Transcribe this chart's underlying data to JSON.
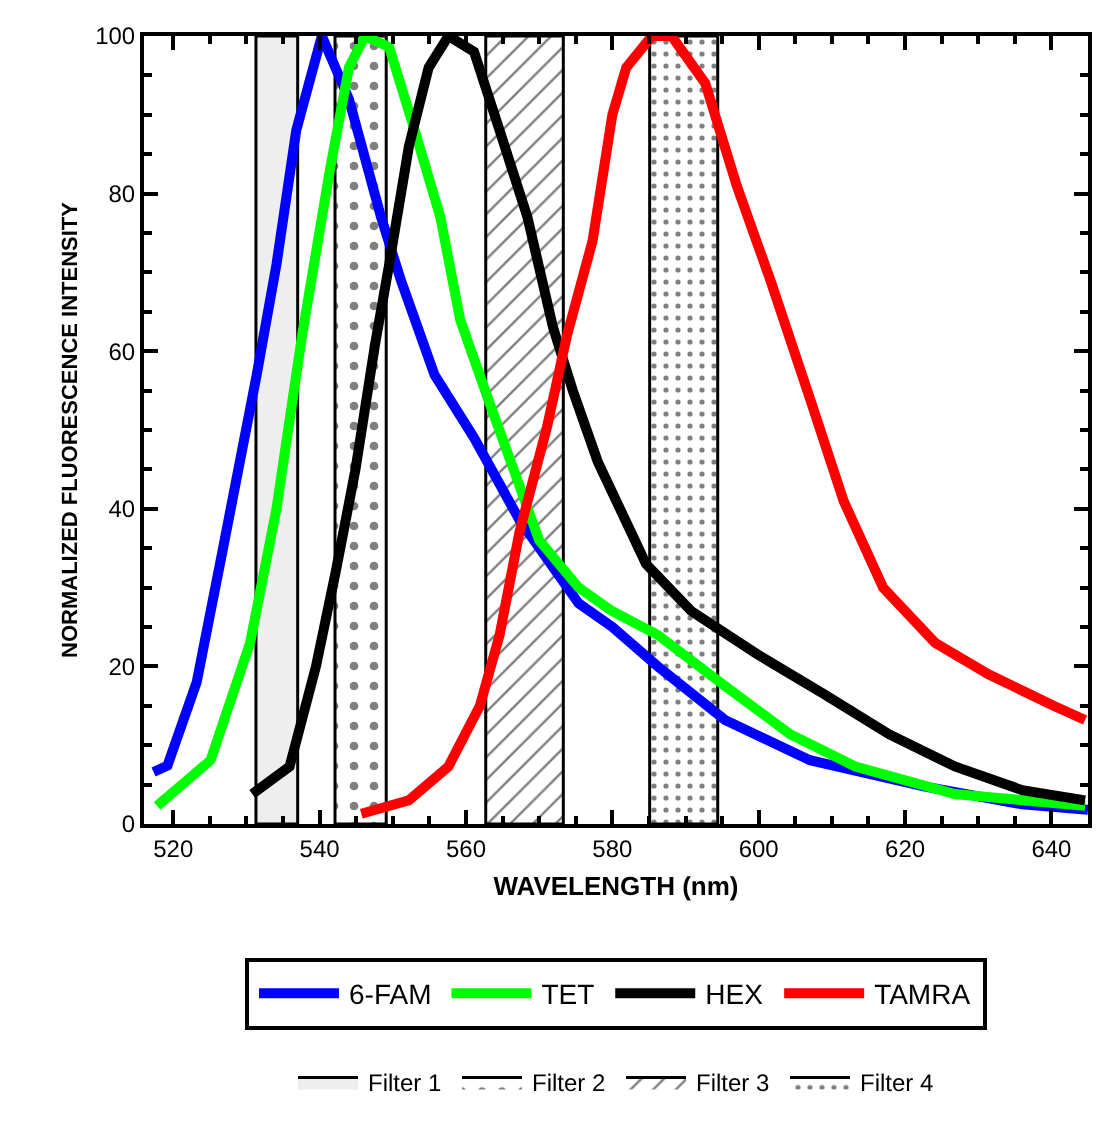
{
  "chart_data": {
    "type": "line",
    "xlabel": "WAVELENGTH (nm)",
    "ylabel": "NORMALIZED FLUORESCENCE INTENSITY",
    "xlim": [
      516,
      645
    ],
    "xticks": [
      520,
      540,
      560,
      580,
      600,
      620,
      640
    ],
    "ylim": [
      0,
      100
    ],
    "yticks": [
      0,
      20,
      40,
      60,
      80,
      100
    ],
    "legend": "bottom",
    "marker": "none",
    "line_style": "solid",
    "series": [
      {
        "name": "6-FAM",
        "color": "#0000ff",
        "x": [
          517.3,
          519.2,
          523.2,
          526.8,
          531.4,
          534.1,
          536.8,
          540.3,
          544,
          548.4,
          551.1,
          555.7,
          561.1,
          567.3,
          575.4,
          580,
          586.2,
          595.4,
          607,
          622.4,
          636,
          645
        ],
        "values": [
          6.6,
          7.4,
          18,
          35,
          57,
          71,
          88,
          100,
          92,
          77,
          69,
          57,
          49,
          38.6,
          28,
          25,
          20,
          13.2,
          8.1,
          4.8,
          2.5,
          1.8
        ]
      },
      {
        "name": "TET",
        "color": "#00ff00",
        "x": [
          517.8,
          525.1,
          530.5,
          534.1,
          537.6,
          541.4,
          544,
          546.2,
          549.5,
          553,
          556.5,
          559.2,
          563,
          566.5,
          570,
          575.4,
          580,
          586.2,
          595.4,
          604.3,
          613.2,
          626.8,
          644.6
        ],
        "values": [
          2.3,
          8.1,
          23,
          40,
          62,
          83,
          96,
          100,
          98.6,
          88,
          77,
          64,
          54,
          45,
          36,
          30,
          27,
          24,
          17.5,
          11.4,
          7.3,
          3.8,
          2.3
        ]
      },
      {
        "name": "HEX",
        "color": "#000000",
        "x": [
          530.8,
          535.9,
          539.5,
          542.2,
          544.9,
          547.6,
          549.5,
          552.2,
          554.9,
          557.6,
          561.1,
          564.6,
          568.4,
          571.9,
          574.6,
          578,
          584.6,
          590.8,
          599.7,
          608.9,
          617.8,
          626.8,
          636,
          644.6
        ],
        "values": [
          3.8,
          7.3,
          20,
          32,
          45,
          61,
          71,
          86,
          96,
          100,
          98,
          88,
          77,
          63,
          55,
          46,
          33,
          27,
          21.6,
          16.5,
          11.4,
          7.3,
          4.3,
          3
        ]
      },
      {
        "name": "TAMRA",
        "color": "#ff0000",
        "x": [
          545.7,
          552.2,
          557.6,
          561.9,
          564.6,
          567.3,
          571.1,
          573.8,
          577.3,
          580,
          581.9,
          585.4,
          588.1,
          592.7,
          597,
          601.6,
          607,
          611.6,
          617,
          624.1,
          631.4,
          640.3,
          644.6
        ],
        "values": [
          1.3,
          3,
          7.3,
          15,
          24,
          37,
          50.5,
          62,
          74,
          90,
          96,
          100,
          100,
          94,
          81,
          69,
          54,
          41,
          30,
          23,
          19,
          15,
          13.2
        ]
      }
    ],
    "bands": [
      {
        "axis": "x",
        "from": 531.3,
        "to": 537.0,
        "label": "Filter 1",
        "color": "#eeeeee"
      },
      {
        "axis": "x",
        "from": 542.1,
        "to": 549.1,
        "label": "Filter 2",
        "color": "#ffffff"
      },
      {
        "axis": "x",
        "from": 562.7,
        "to": 573.3,
        "label": "Filter 3",
        "color": "#ffffff"
      },
      {
        "axis": "x",
        "from": 585.1,
        "to": 594.4,
        "label": "Filter 4",
        "color": "#ffffff"
      }
    ]
  }
}
